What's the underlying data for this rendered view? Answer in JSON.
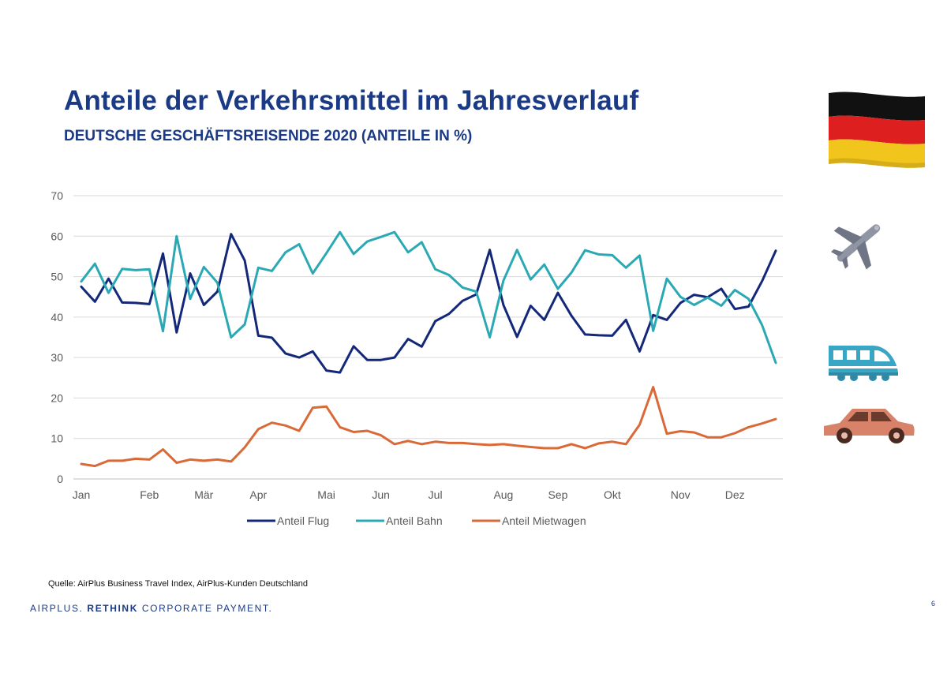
{
  "header": {
    "title": "Anteile der Verkehrsmittel im Jahresverlauf",
    "subtitle": "DEUTSCHE GESCHÄFTSREISENDE 2020 (ANTEILE IN %)"
  },
  "footer": {
    "source": "Quelle: AirPlus Business Travel Index, AirPlus-Kunden Deutschland",
    "brand_part1": "AIRPLUS. ",
    "brand_part2": "RETHINK",
    "brand_part3": " CORPORATE PAYMENT.",
    "page_number": "6"
  },
  "icons": [
    "germany-flag-icon",
    "airplane-icon",
    "train-icon",
    "car-icon"
  ],
  "colors": {
    "flug": "#14287a",
    "bahn": "#2aa9b4",
    "mietwagen": "#d96a38",
    "title": "#1b3a86"
  },
  "chart_data": {
    "type": "line",
    "ylim": [
      0,
      70
    ],
    "yticks": [
      "0",
      "10",
      "20",
      "30",
      "40",
      "50",
      "60",
      "70"
    ],
    "month_labels": [
      "Jan",
      "Feb",
      "Mär",
      "Apr",
      "Mai",
      "Jun",
      "Jul",
      "Aug",
      "Sep",
      "Okt",
      "Nov",
      "Dez"
    ],
    "month_week_index": [
      0,
      5,
      9,
      13,
      18,
      22,
      26,
      31,
      35,
      39,
      44,
      48
    ],
    "legend": [
      "Anteil Flug",
      "Anteil Bahn",
      "Anteil Mietwagen"
    ],
    "series": [
      {
        "name": "Anteil Flug",
        "color": "#14287a",
        "values": [
          47.5,
          43.8,
          49.5,
          43.6,
          43.5,
          43.2,
          55.7,
          36.2,
          50.8,
          43.0,
          46.3,
          60.5,
          54.0,
          35.4,
          34.9,
          31.0,
          30.0,
          31.5,
          26.8,
          26.3,
          32.8,
          29.4,
          29.4,
          30.0,
          34.6,
          32.7,
          39.0,
          40.8,
          44.0,
          45.6,
          56.6,
          43.0,
          35.1,
          42.8,
          39.3,
          46.0,
          40.3,
          35.7,
          35.5,
          35.4,
          39.3,
          31.5,
          40.5,
          39.3,
          43.5,
          45.5,
          44.9,
          47.0,
          42.0,
          42.6,
          48.9,
          56.4
        ]
      },
      {
        "name": "Anteil Bahn",
        "color": "#2aa9b4",
        "values": [
          48.8,
          53.2,
          46.0,
          51.9,
          51.6,
          51.8,
          36.5,
          60.0,
          44.5,
          52.4,
          48.5,
          35.0,
          38.2,
          52.2,
          51.4,
          56.0,
          58.0,
          50.8,
          55.8,
          61.0,
          55.6,
          58.7,
          59.8,
          61.0,
          56.0,
          58.5,
          51.8,
          50.4,
          47.3,
          46.3,
          35.0,
          49.0,
          56.6,
          49.3,
          53.0,
          47.0,
          51.0,
          56.5,
          55.5,
          55.3,
          52.2,
          55.2,
          36.6,
          49.5,
          45.0,
          43.0,
          44.8,
          42.8,
          46.7,
          44.5,
          38.0,
          28.7
        ]
      },
      {
        "name": "Anteil Mietwagen",
        "color": "#d96a38",
        "values": [
          3.7,
          3.2,
          4.5,
          4.5,
          5.0,
          4.8,
          7.3,
          4.0,
          4.8,
          4.5,
          4.8,
          4.3,
          7.8,
          12.3,
          13.9,
          13.2,
          11.9,
          17.6,
          17.9,
          12.8,
          11.6,
          11.9,
          10.8,
          8.6,
          9.4,
          8.6,
          9.2,
          8.9,
          8.9,
          8.6,
          8.4,
          8.6,
          8.2,
          7.9,
          7.6,
          7.6,
          8.6,
          7.6,
          8.8,
          9.2,
          8.6,
          13.4,
          22.7,
          11.2,
          11.8,
          11.5,
          10.3,
          10.3,
          11.3,
          12.8,
          13.7,
          14.8
        ]
      }
    ]
  }
}
